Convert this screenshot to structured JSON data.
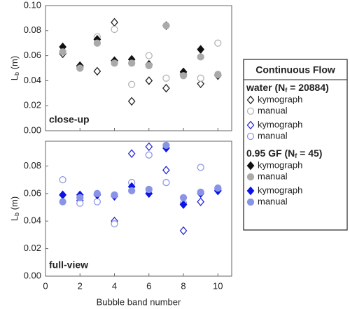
{
  "chart_data": [
    {
      "type": "scatter",
      "panel_label": "close-up",
      "ylabel": {
        "main": "L",
        "sub": "b",
        "suffix": " (m)"
      },
      "x": [
        1,
        2,
        3,
        4,
        5,
        6,
        7,
        8,
        9,
        10
      ],
      "xlim": [
        0,
        10.8
      ],
      "xticks": [
        0,
        2,
        4,
        6,
        8,
        10
      ],
      "ylim": [
        0,
        0.1
      ],
      "yticks": [
        {
          "value": 0,
          "label": "0.00"
        },
        {
          "value": 0.02,
          "label": "0.02"
        },
        {
          "value": 0.04,
          "label": "0.04"
        },
        {
          "value": 0.06,
          "label": "0.06"
        },
        {
          "value": 0.08,
          "label": "0.08"
        },
        {
          "value": 0.1,
          "label": "0.10"
        }
      ],
      "series": [
        {
          "name": "kymograph",
          "marker": "diamond-open",
          "color": "#222222",
          "values": [
            0.0615,
            0.051,
            0.0475,
            0.0866,
            0.0235,
            0.04,
            0.034,
            0.045,
            0.0375,
            0.044
          ]
        },
        {
          "name": "manual",
          "marker": "circle-open",
          "color": "#b5b5b5",
          "values": [
            0.063,
            0.05,
            0.075,
            0.081,
            0.037,
            0.06,
            0.042,
            0.045,
            0.042,
            0.07
          ]
        },
        {
          "name": "kymograph",
          "marker": "diamond",
          "color": "#111111",
          "values": [
            0.067,
            0.052,
            0.073,
            0.056,
            0.057,
            0.053,
            0.084,
            0.047,
            0.065,
            null
          ]
        },
        {
          "name": "manual",
          "marker": "circle",
          "color": "#aaaaaa",
          "values": [
            0.063,
            0.05,
            0.07,
            0.054,
            0.054,
            0.052,
            0.084,
            0.044,
            0.059,
            0.045
          ]
        }
      ]
    },
    {
      "type": "scatter",
      "panel_label": "full-view",
      "xlabel": "Bubble band number",
      "ylabel": {
        "main": "L",
        "sub": "b",
        "suffix": " (m)"
      },
      "x": [
        1,
        2,
        3,
        4,
        5,
        6,
        7,
        8,
        9,
        10
      ],
      "xlim": [
        0,
        10.8
      ],
      "xticks": [
        0,
        2,
        4,
        6,
        8,
        10
      ],
      "ylim": [
        0,
        0.098
      ],
      "yticks": [
        {
          "value": 0,
          "label": "0.00"
        },
        {
          "value": 0.02,
          "label": "0.02"
        },
        {
          "value": 0.04,
          "label": "0.04"
        },
        {
          "value": 0.06,
          "label": "0.06"
        },
        {
          "value": 0.08,
          "label": "0.08"
        }
      ],
      "series": [
        {
          "name": "kymograph",
          "marker": "diamond-open",
          "color": "#2a2ad8",
          "values": [
            0.059,
            0.055,
            0.059,
            0.04,
            0.089,
            0.094,
            0.077,
            0.033,
            0.054,
            0.062
          ]
        },
        {
          "name": "manual",
          "marker": "circle-open",
          "color": "#9098e8",
          "values": [
            0.07,
            0.053,
            0.054,
            0.038,
            0.068,
            0.088,
            0.068,
            0.053,
            0.079,
            0.063
          ]
        },
        {
          "name": "kymograph",
          "marker": "diamond",
          "color": "#0a14e6",
          "values": [
            0.059,
            0.059,
            0.059,
            0.058,
            0.065,
            0.06,
            0.093,
            0.052,
            0.06,
            0.062
          ]
        },
        {
          "name": "manual",
          "marker": "circle",
          "color": "#8a94e6",
          "values": [
            0.054,
            0.057,
            0.06,
            0.059,
            0.062,
            0.063,
            0.095,
            0.057,
            0.061,
            0.064
          ]
        }
      ]
    }
  ],
  "legend": {
    "title": "Continuous Flow",
    "groups": [
      {
        "prefix": "water (N",
        "sub": "f",
        "suffix": " = 20884)"
      },
      {
        "prefix": "0.95 GF (N",
        "sub": "f",
        "suffix": " = 45)"
      }
    ]
  }
}
